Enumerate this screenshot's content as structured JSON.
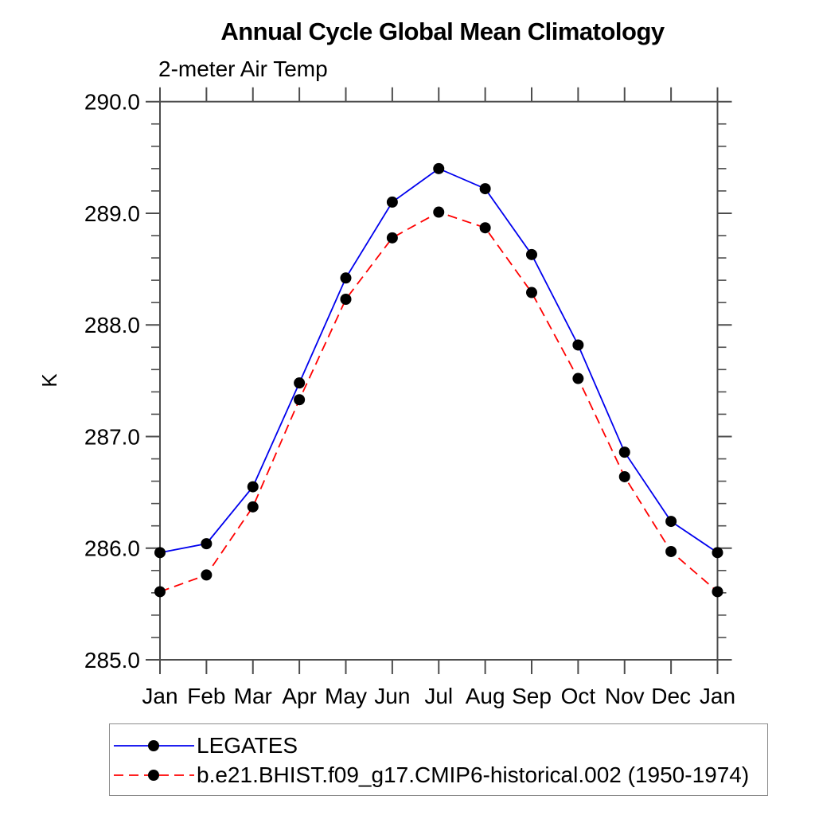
{
  "page": {
    "background": "#ffffff"
  },
  "chart_data": {
    "type": "line",
    "title": "Annual Cycle Global Mean Climatology",
    "subtitle": "2-meter Air Temp",
    "ylabel": "K",
    "xlabel": "",
    "categories": [
      "Jan",
      "Feb",
      "Mar",
      "Apr",
      "May",
      "Jun",
      "Jul",
      "Aug",
      "Sep",
      "Oct",
      "Nov",
      "Dec",
      "Jan"
    ],
    "y_tick_labels": [
      "290.0",
      "289.0",
      "288.0",
      "287.0",
      "286.0",
      "285.0"
    ],
    "ylim": [
      285.0,
      290.0
    ],
    "y_major_step": 1.0,
    "y_minor_step": 0.2,
    "grid": false,
    "legend_position": "bottom-left",
    "axis_color": "#4d4d4d",
    "marker_color": "#000000",
    "series": [
      {
        "name": "LEGATES",
        "color": "#0000ee",
        "style": "solid",
        "marker": "circle",
        "values": [
          285.96,
          286.04,
          286.55,
          287.48,
          288.42,
          289.1,
          289.4,
          289.22,
          288.63,
          287.82,
          286.86,
          286.24,
          285.96
        ]
      },
      {
        "name": "b.e21.BHIST.f09_g17.CMIP6-historical.002 (1950-1974)",
        "color": "#ff0000",
        "style": "dashed",
        "marker": "circle",
        "values": [
          285.61,
          285.76,
          286.37,
          287.33,
          288.23,
          288.78,
          289.01,
          288.87,
          288.29,
          287.52,
          286.64,
          285.97,
          285.61
        ]
      }
    ]
  }
}
